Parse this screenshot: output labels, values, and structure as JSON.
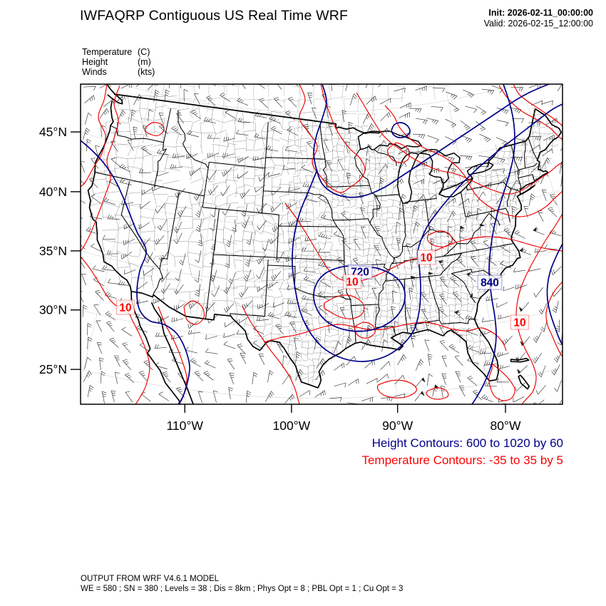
{
  "header": {
    "title": "IWFAQRP Contiguous US Real Time WRF",
    "init": "Init: 2026-02-11_00:00:00",
    "valid": "Valid: 2026-02-15_12:00:00"
  },
  "field_legend": {
    "rows": [
      {
        "name": "Temperature",
        "unit": "(C)"
      },
      {
        "name": "Height",
        "unit": "(m)"
      },
      {
        "name": "Winds",
        "unit": "(kts)"
      }
    ]
  },
  "contour_info": {
    "height_text": "Height Contours: 600 to 1020 by 60",
    "height_color": "#00008b",
    "temp_text": "Temperature Contours: -35 to 35 by 5",
    "temp_color": "#ff0000"
  },
  "footer": {
    "line1": "OUTPUT FROM WRF V4.6.1 MODEL",
    "line2": "WE = 580 ; SN = 380 ; Levels = 38 ; Dis = 8km ; Phys Opt = 8 ; PBL Opt = 1 ; Cu Opt = 3"
  },
  "chart_data": {
    "type": "map",
    "map_type": "weather-model-contour-plot",
    "region": "Contiguous United States",
    "projection": "lambert-conformal",
    "title": "IWFAQRP Contiguous US Real Time WRF",
    "model": "WRF V4.6.1",
    "init_time": "2026-02-11_00:00:00",
    "valid_time": "2026-02-15_12:00:00",
    "fields": [
      {
        "name": "Temperature",
        "units": "C",
        "representation": "contours",
        "color": "#ff0000",
        "min": -35,
        "max": 35,
        "interval": 5
      },
      {
        "name": "Height",
        "units": "m",
        "representation": "contours",
        "color": "#00008b",
        "min": 600,
        "max": 1020,
        "interval": 60
      },
      {
        "name": "Winds",
        "units": "kts",
        "representation": "wind-barbs",
        "color": "#000000"
      }
    ],
    "axes": {
      "lat_ticks": [
        "45°N",
        "40°N",
        "35°N",
        "30°N",
        "25°N"
      ],
      "lon_ticks": [
        "110°W",
        "100°W",
        "90°W",
        "80°W"
      ],
      "grid": "faint-graticule"
    },
    "contour_labels": [
      {
        "text": "720",
        "field": "Height",
        "color": "#00008b",
        "location": "oklahoma-arkansas"
      },
      {
        "text": "840",
        "field": "Height",
        "color": "#00008b",
        "location": "south-carolina-coast"
      },
      {
        "text": "10",
        "field": "Temperature",
        "color": "#ff0000",
        "location": "southern-california-coast"
      },
      {
        "text": "10",
        "field": "Temperature",
        "color": "#ff0000",
        "location": "arkansas"
      },
      {
        "text": "10",
        "field": "Temperature",
        "color": "#ff0000",
        "location": "tennessee-valley"
      },
      {
        "text": "10",
        "field": "Temperature",
        "color": "#ff0000",
        "location": "western-atlantic"
      }
    ],
    "model_config": {
      "WE": 580,
      "SN": 380,
      "Levels": 38,
      "Dis": "8km",
      "Phys_Opt": 8,
      "PBL_Opt": 1,
      "Cu_Opt": 3
    }
  }
}
